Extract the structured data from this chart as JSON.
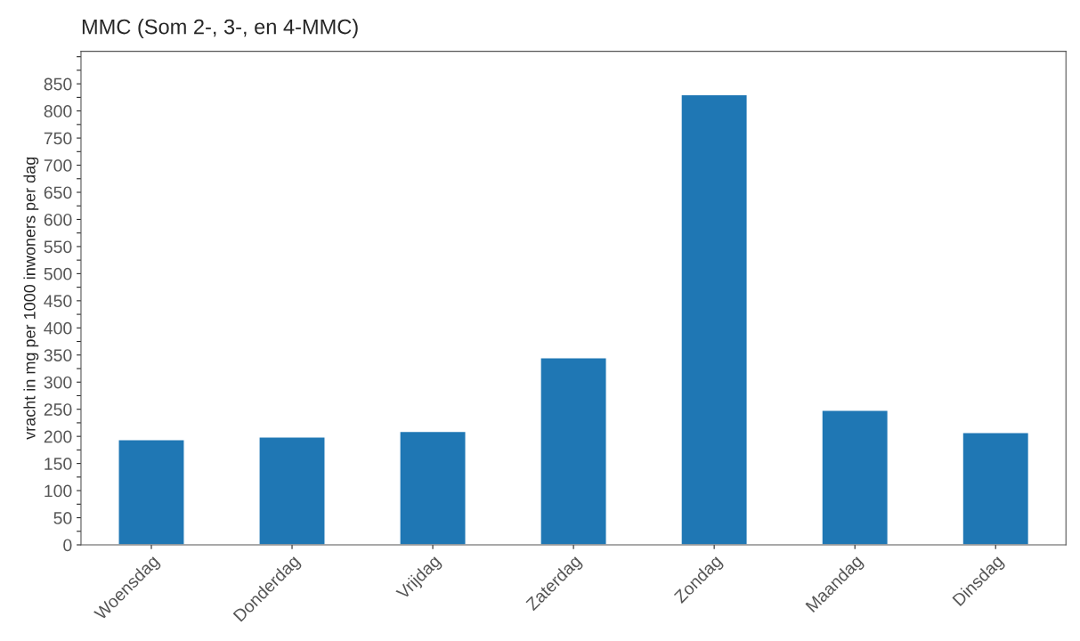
{
  "chart_data": {
    "type": "bar",
    "title": "MMC (Som 2-, 3-, en 4-MMC)",
    "ylabel": "vracht in mg per 1000 inwoners per dag",
    "categories": [
      "Woensdag",
      "Donderdag",
      "Vrijdag",
      "Zaterdag",
      "Zondag",
      "Maandag",
      "Dinsdag"
    ],
    "values": [
      194,
      199,
      209,
      345,
      830,
      248,
      207
    ],
    "color": "#1f77b4",
    "ylim": [
      0,
      910
    ],
    "yticks": [
      0,
      {
        "value": 25,
        "label": null
      },
      50,
      {
        "value": 75,
        "label": null
      },
      100,
      {
        "value": 125,
        "label": null
      },
      150,
      {
        "value": 175,
        "label": null
      },
      200,
      {
        "value": 225,
        "label": null
      },
      250,
      {
        "value": 275,
        "label": null
      },
      300,
      {
        "value": 325,
        "label": null
      },
      350,
      {
        "value": 375,
        "label": null
      },
      400,
      {
        "value": 425,
        "label": null
      },
      450,
      {
        "value": 475,
        "label": null
      },
      500,
      {
        "value": 525,
        "label": null
      },
      550,
      {
        "value": 575,
        "label": null
      },
      600,
      {
        "value": 625,
        "label": null
      },
      650,
      {
        "value": 675,
        "label": null
      },
      700,
      {
        "value": 725,
        "label": null
      },
      750,
      {
        "value": 775,
        "label": null
      },
      800,
      {
        "value": 825,
        "label": null
      },
      850,
      {
        "value": 875,
        "label": null
      },
      {
        "value": 900,
        "label": null
      }
    ],
    "grid": false
  }
}
